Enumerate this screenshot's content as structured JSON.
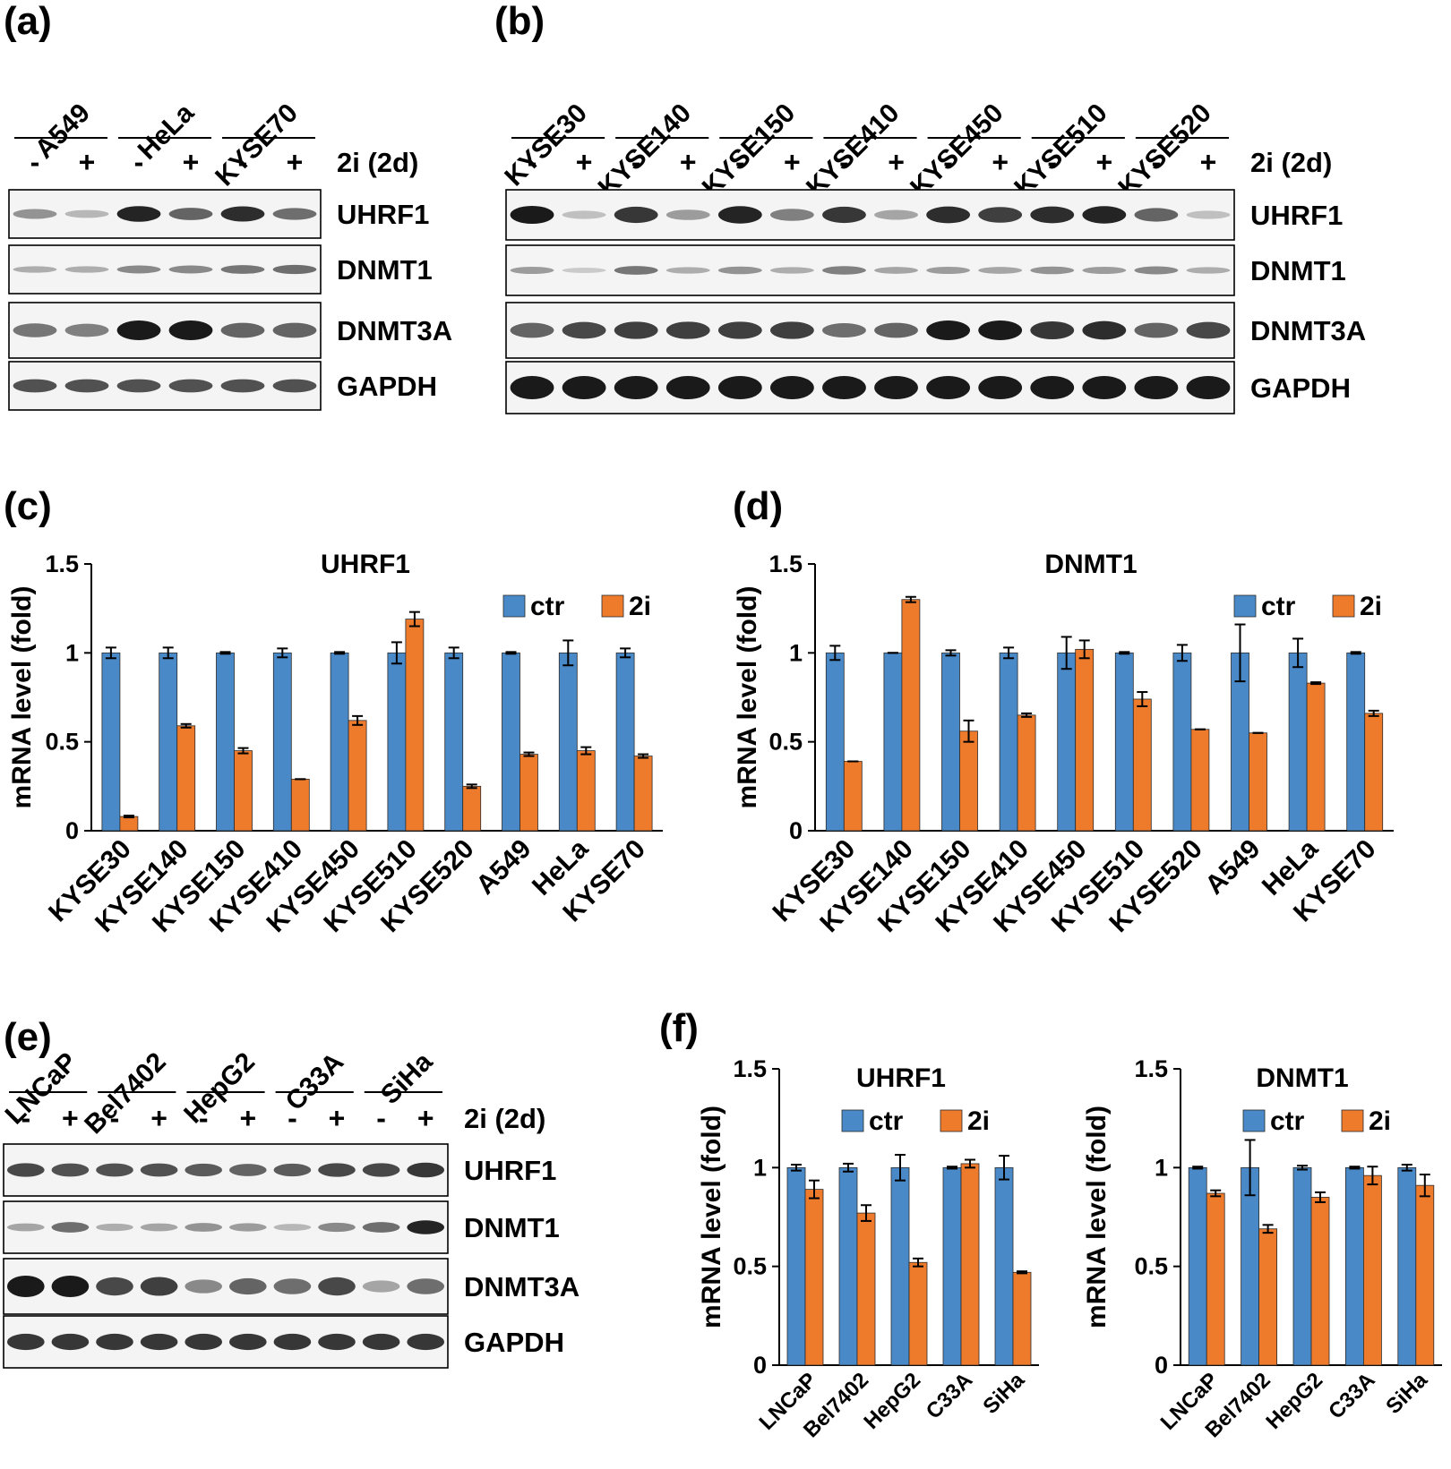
{
  "panels": {
    "a": "(a)",
    "b": "(b)",
    "c": "(c)",
    "d": "(d)",
    "e": "(e)",
    "f": "(f)"
  },
  "colors": {
    "ctr": "#4a89c8",
    "treat": "#ee7b2c",
    "band": "#1a1a1a",
    "blot_bg": "#f4f4f4"
  },
  "treatment_label": "2i (2d)",
  "minus": "-",
  "plus": "+",
  "blots": {
    "a": {
      "cell_lines": [
        "A549",
        "HeLa",
        "KYSE70"
      ],
      "bands": [
        "UHRF1",
        "DNMT1",
        "DNMT3A",
        "GAPDH"
      ]
    },
    "b": {
      "cell_lines": [
        "KYSE30",
        "KYSE140",
        "KYSE150",
        "KYSE410",
        "KYSE450",
        "KYSE510",
        "KYSE520"
      ],
      "bands": [
        "UHRF1",
        "DNMT1",
        "DNMT3A",
        "GAPDH"
      ]
    },
    "e": {
      "cell_lines": [
        "LNCaP",
        "Bel7402",
        "HepG2",
        "C33A",
        "SiHa"
      ],
      "bands": [
        "UHRF1",
        "DNMT1",
        "DNMT3A",
        "GAPDH"
      ]
    }
  },
  "chart_data": [
    {
      "type": "bar",
      "title": "UHRF1",
      "ylabel": "mRNA level (fold)",
      "ylim": [
        0,
        1.5
      ],
      "yticks": [
        "0",
        "0.5",
        "1",
        "1.5"
      ],
      "categories": [
        "KYSE30",
        "KYSE140",
        "KYSE150",
        "KYSE410",
        "KYSE450",
        "KYSE510",
        "KYSE520",
        "A549",
        "HeLa",
        "KYSE70"
      ],
      "series": [
        {
          "name": "ctr",
          "values": [
            1,
            1,
            1,
            1,
            1,
            1,
            1,
            1,
            1,
            1
          ],
          "errors": [
            0.03,
            0.03,
            0.005,
            0.025,
            0.005,
            0.06,
            0.03,
            0.005,
            0.07,
            0.025
          ]
        },
        {
          "name": "2i",
          "values": [
            0.08,
            0.59,
            0.45,
            0.29,
            0.62,
            1.19,
            0.25,
            0.43,
            0.45,
            0.42
          ],
          "errors": [
            0.005,
            0.01,
            0.015,
            0.0,
            0.025,
            0.04,
            0.01,
            0.01,
            0.02,
            0.01
          ]
        }
      ]
    },
    {
      "type": "bar",
      "title": "DNMT1",
      "ylabel": "mRNA level (fold)",
      "ylim": [
        0,
        1.5
      ],
      "yticks": [
        "0",
        "0.5",
        "1",
        "1.5"
      ],
      "categories": [
        "KYSE30",
        "KYSE140",
        "KYSE150",
        "KYSE410",
        "KYSE450",
        "KYSE510",
        "KYSE520",
        "A549",
        "HeLa",
        "KYSE70"
      ],
      "series": [
        {
          "name": "ctr",
          "values": [
            1,
            1,
            1,
            1,
            1,
            1,
            1,
            1,
            1,
            1
          ],
          "errors": [
            0.04,
            0.0,
            0.015,
            0.03,
            0.09,
            0.005,
            0.045,
            0.16,
            0.08,
            0.005
          ]
        },
        {
          "name": "2i",
          "values": [
            0.39,
            1.3,
            0.56,
            0.65,
            1.02,
            0.74,
            0.57,
            0.55,
            0.83,
            0.66
          ],
          "errors": [
            0.0,
            0.015,
            0.06,
            0.01,
            0.05,
            0.04,
            0.0,
            0.0,
            0.005,
            0.015
          ]
        }
      ]
    },
    {
      "type": "bar",
      "title": "UHRF1",
      "ylabel": "mRNA level (fold)",
      "ylim": [
        0,
        1.5
      ],
      "yticks": [
        "0",
        "0.5",
        "1",
        "1.5"
      ],
      "categories": [
        "LNCaP",
        "Bel7402",
        "HepG2",
        "C33A",
        "SiHa"
      ],
      "series": [
        {
          "name": "ctr",
          "values": [
            1,
            1,
            1,
            1,
            1
          ],
          "errors": [
            0.015,
            0.02,
            0.065,
            0.005,
            0.06
          ]
        },
        {
          "name": "2i",
          "values": [
            0.89,
            0.77,
            0.52,
            1.02,
            0.47
          ],
          "errors": [
            0.045,
            0.04,
            0.02,
            0.02,
            0.005
          ]
        }
      ]
    },
    {
      "type": "bar",
      "title": "DNMT1",
      "ylabel": "mRNA level (fold)",
      "ylim": [
        0,
        1.5
      ],
      "yticks": [
        "0",
        "0.5",
        "1",
        "1.5"
      ],
      "categories": [
        "LNCaP",
        "Bel7402",
        "HepG2",
        "C33A",
        "SiHa"
      ],
      "series": [
        {
          "name": "ctr",
          "values": [
            1,
            1,
            1,
            1,
            1
          ],
          "errors": [
            0.005,
            0.14,
            0.01,
            0.005,
            0.015
          ]
        },
        {
          "name": "2i",
          "values": [
            0.87,
            0.69,
            0.85,
            0.96,
            0.91
          ],
          "errors": [
            0.015,
            0.02,
            0.025,
            0.045,
            0.055
          ]
        }
      ]
    }
  ]
}
